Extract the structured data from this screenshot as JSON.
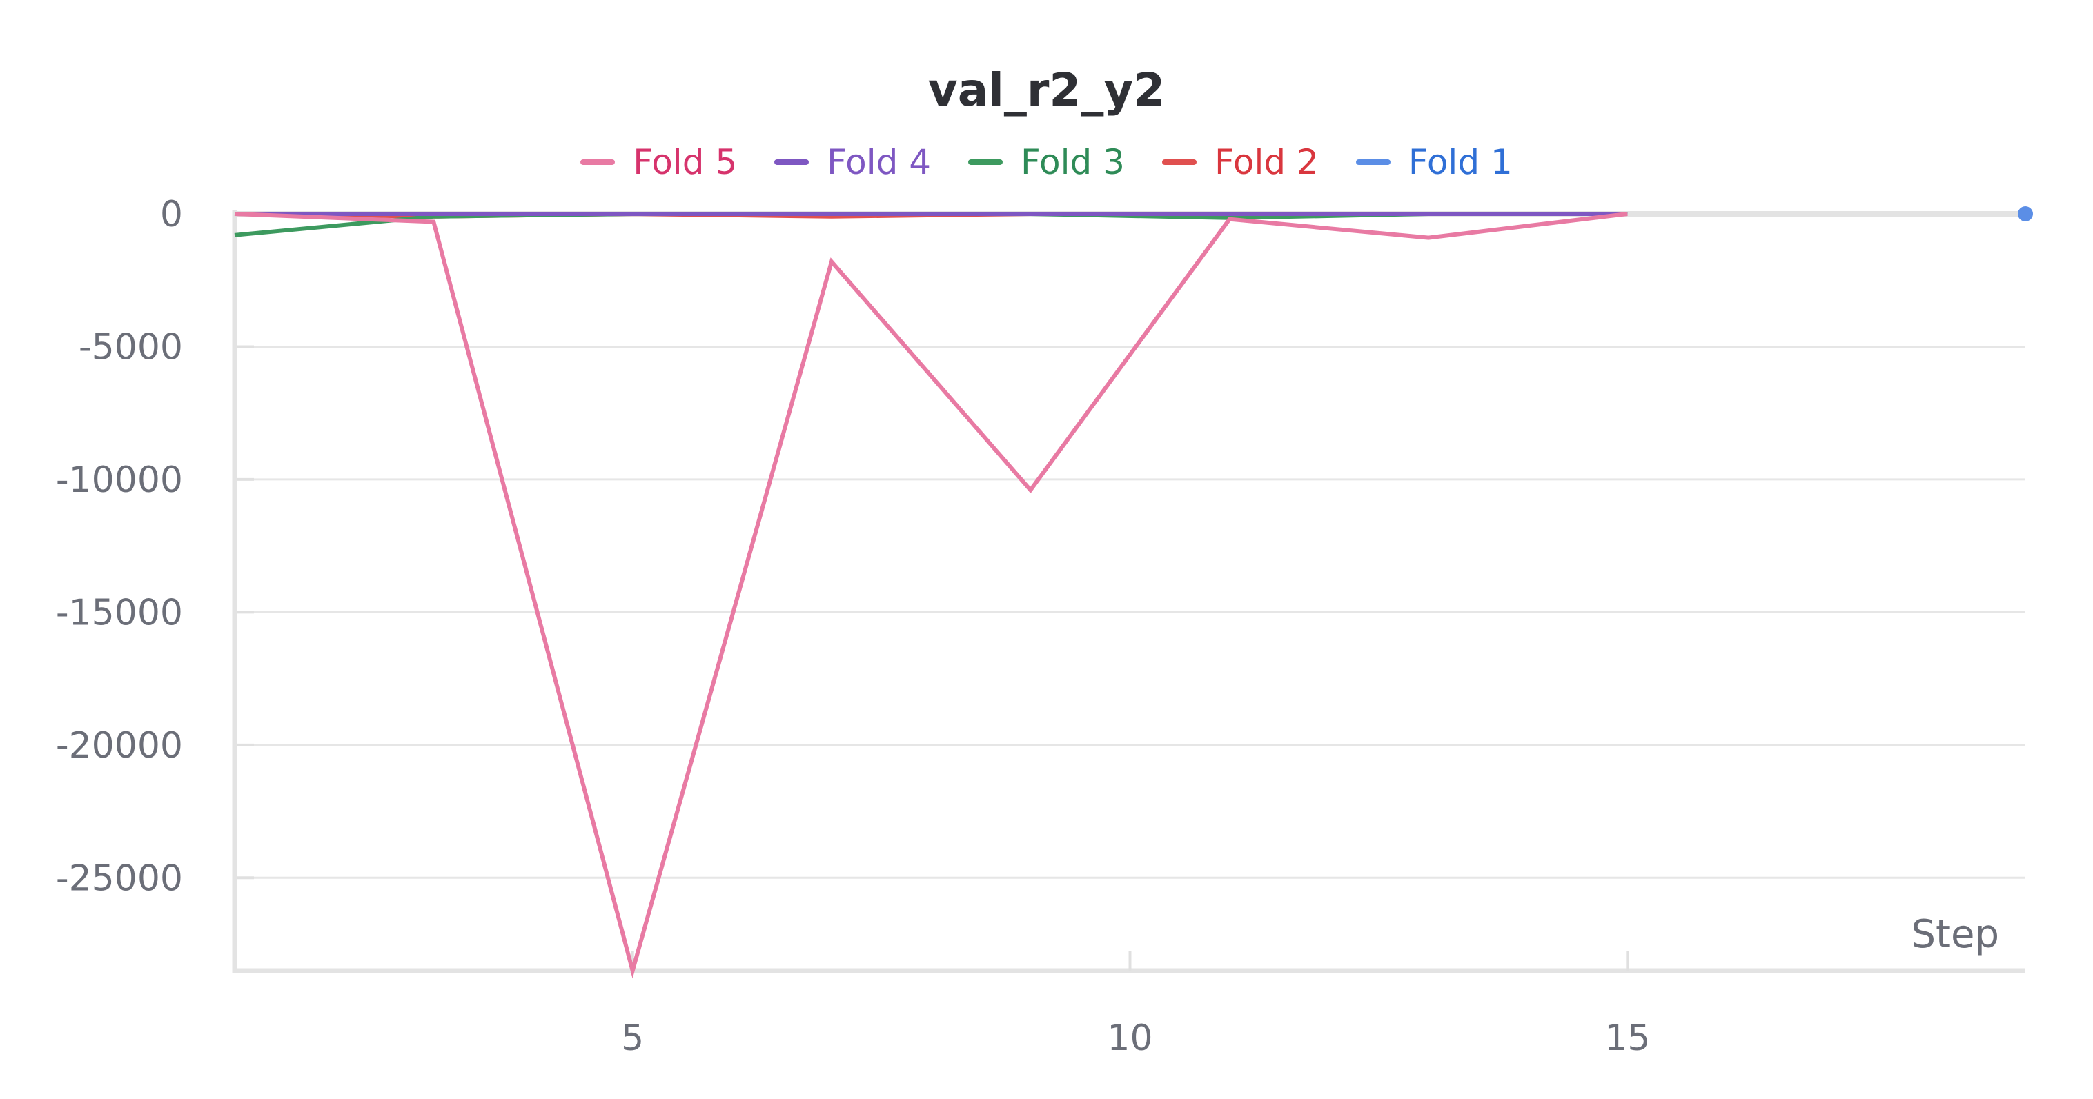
{
  "chart_data": {
    "type": "line",
    "title": "val_r2_y2",
    "xlabel": "Step",
    "ylabel": "",
    "xlim": [
      1,
      19
    ],
    "ylim": [
      -28500,
      0
    ],
    "x_ticks": [
      5,
      10,
      15
    ],
    "y_ticks": [
      0,
      -5000,
      -10000,
      -15000,
      -20000,
      -25000
    ],
    "y_tick_labels": [
      "0",
      "-5000",
      "-10000",
      "-15000",
      "-20000",
      "-25000"
    ],
    "x_tick_labels": [
      "5",
      "10",
      "15"
    ],
    "grid": true,
    "legend_position": "top-center",
    "series": [
      {
        "name": "Fold 5",
        "color": "#e87aa3",
        "label_color": "#d6336c",
        "x": [
          1,
          3,
          5,
          7,
          9,
          11,
          13,
          15
        ],
        "y": [
          0,
          -300,
          -28500,
          -1800,
          -10400,
          -200,
          -900,
          0
        ]
      },
      {
        "name": "Fold 4",
        "color": "#7e57c2",
        "label_color": "#7e57c2",
        "x": [
          1,
          3,
          5,
          7,
          9,
          11,
          13,
          15
        ],
        "y": [
          0,
          0,
          0,
          0,
          0,
          0,
          0,
          0
        ]
      },
      {
        "name": "Fold 3",
        "color": "#3d9a5f",
        "label_color": "#2e8b57",
        "x": [
          1,
          3,
          5,
          7,
          9,
          11,
          13,
          15
        ],
        "y": [
          -800,
          -100,
          0,
          0,
          0,
          -150,
          0,
          0
        ]
      },
      {
        "name": "Fold 2",
        "color": "#e0504f",
        "label_color": "#d9363e",
        "x": [
          1,
          3,
          5,
          7,
          9,
          11,
          13,
          15
        ],
        "y": [
          0,
          -100,
          0,
          -100,
          0,
          0,
          0,
          0
        ]
      },
      {
        "name": "Fold 1",
        "color": "#5b8ee6",
        "label_color": "#2f6fd6",
        "x": [
          19
        ],
        "y": [
          0
        ]
      }
    ]
  }
}
